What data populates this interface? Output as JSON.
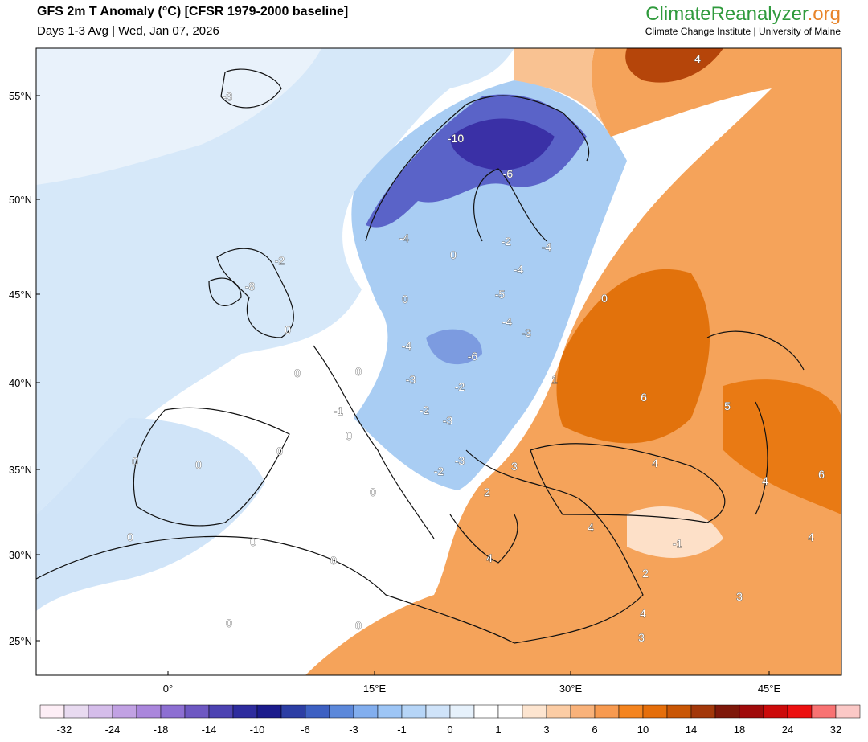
{
  "header": {
    "title": "GFS 2m T Anomaly (°C) [CFSR 1979-2000 baseline]",
    "subtitle": "Days 1-3 Avg | Wed, Jan 07, 2026",
    "brand": {
      "main": "ClimateReanalyzer",
      "suffix": ".org"
    },
    "affiliation": "Climate Change Institute | University of Maine"
  },
  "map": {
    "lat_labels": [
      "55°N",
      "50°N",
      "45°N",
      "40°N",
      "35°N",
      "30°N",
      "25°N"
    ],
    "lon_labels": [
      "0°",
      "15°E",
      "30°E",
      "45°E"
    ],
    "contour_labels": [
      -3,
      -10,
      -6,
      -4,
      -2,
      -4,
      -4,
      -2,
      -8,
      0,
      -5,
      0,
      0,
      -4,
      -3,
      0,
      -4,
      -6,
      0,
      0,
      1,
      -3,
      -2,
      6,
      -2,
      -1,
      5,
      -3,
      0,
      0,
      0,
      0,
      3,
      -3,
      -2,
      4,
      4,
      6,
      2,
      0,
      4,
      -1,
      4,
      0,
      0,
      4,
      0,
      2,
      3,
      4,
      0,
      0,
      3,
      4
    ]
  },
  "colorbar": {
    "labels": [
      -32,
      -24,
      -18,
      -14,
      -10,
      -6,
      -3,
      -1,
      0,
      1,
      3,
      6,
      10,
      14,
      18,
      24,
      32
    ],
    "colors": [
      "#fdeef6",
      "#e8daf0",
      "#d5bdea",
      "#c1a1e3",
      "#aa86dc",
      "#8d6fd2",
      "#6e58c2",
      "#4d43b2",
      "#2e2c9e",
      "#1b1b8c",
      "#2c3ea4",
      "#3d60c2",
      "#5c88da",
      "#82aeee",
      "#9dc5f5",
      "#b6d5f7",
      "#cfe3f9",
      "#e6f1fb",
      "#ffffff",
      "#ffffff",
      "#fde5d0",
      "#fbcca4",
      "#f9b27a",
      "#f79a50",
      "#f4841f",
      "#e56e0a",
      "#c95605",
      "#a3380a",
      "#7e180a",
      "#a00a0a",
      "#cc0a0a",
      "#ec1010",
      "#f87272",
      "#fbc8c6"
    ]
  }
}
